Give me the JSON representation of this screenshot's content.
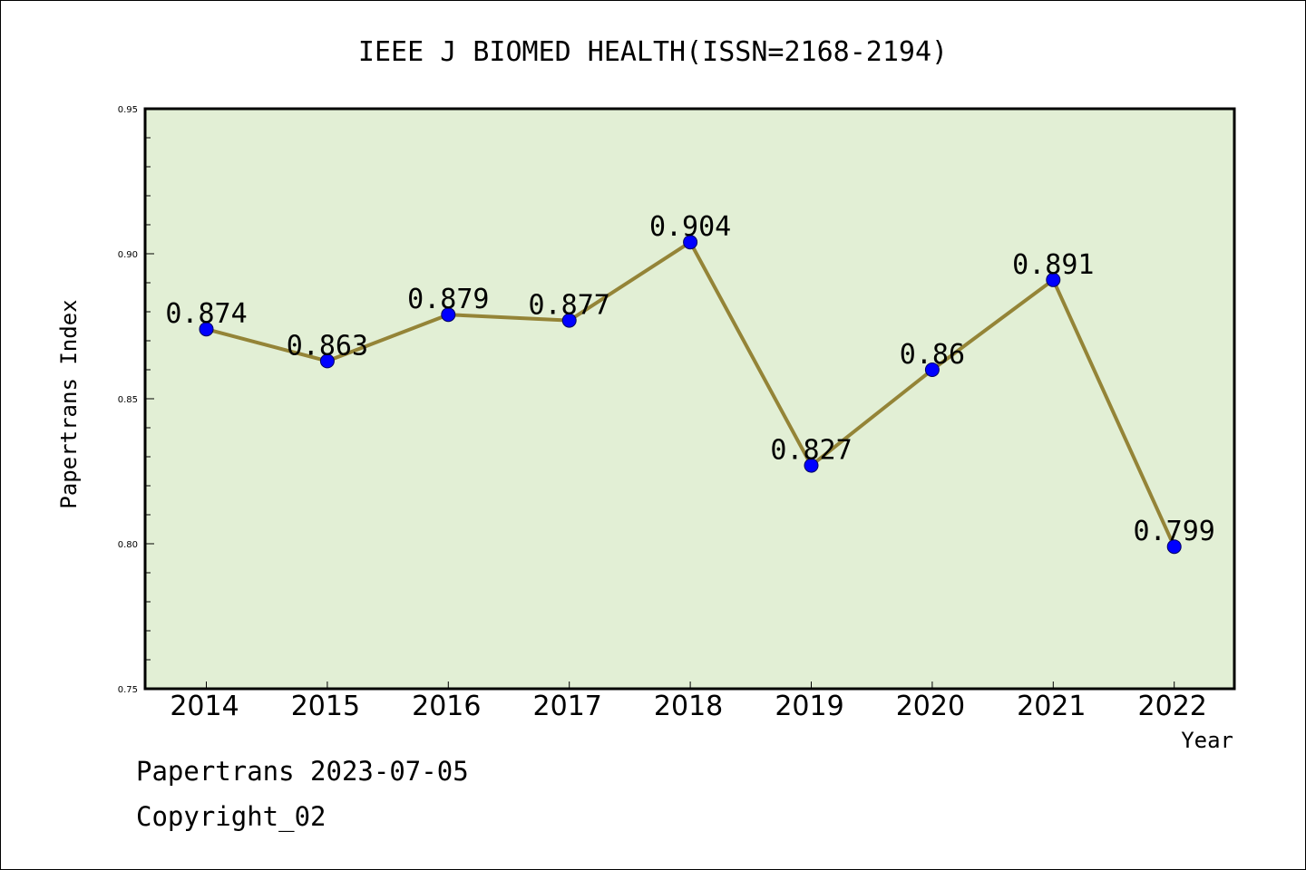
{
  "chart_data": {
    "type": "line",
    "title": "IEEE J BIOMED HEALTH(ISSN=2168-2194)",
    "xlabel": "Year",
    "ylabel": "Papertrans Index",
    "x": [
      "2014",
      "2015",
      "2016",
      "2017",
      "2018",
      "2019",
      "2020",
      "2021",
      "2022"
    ],
    "series": [
      {
        "values": [
          0.874,
          0.863,
          0.879,
          0.877,
          0.904,
          0.827,
          0.86,
          0.891,
          0.799
        ],
        "labels": [
          "0.874",
          "0.863",
          "0.879",
          "0.877",
          "0.904",
          "0.827",
          "0.86",
          "0.891",
          "0.799"
        ],
        "line_color": "#948437",
        "marker_color": "#0000ff"
      }
    ],
    "ylim": [
      0.75,
      0.95
    ],
    "yticks": [
      "0.75",
      "0.80",
      "0.85",
      "0.90",
      "0.95"
    ],
    "plot_background": "#e2efd5",
    "grid": false
  },
  "footer": {
    "line1": "Papertrans 2023-07-05",
    "line2": "Copyright_02"
  }
}
